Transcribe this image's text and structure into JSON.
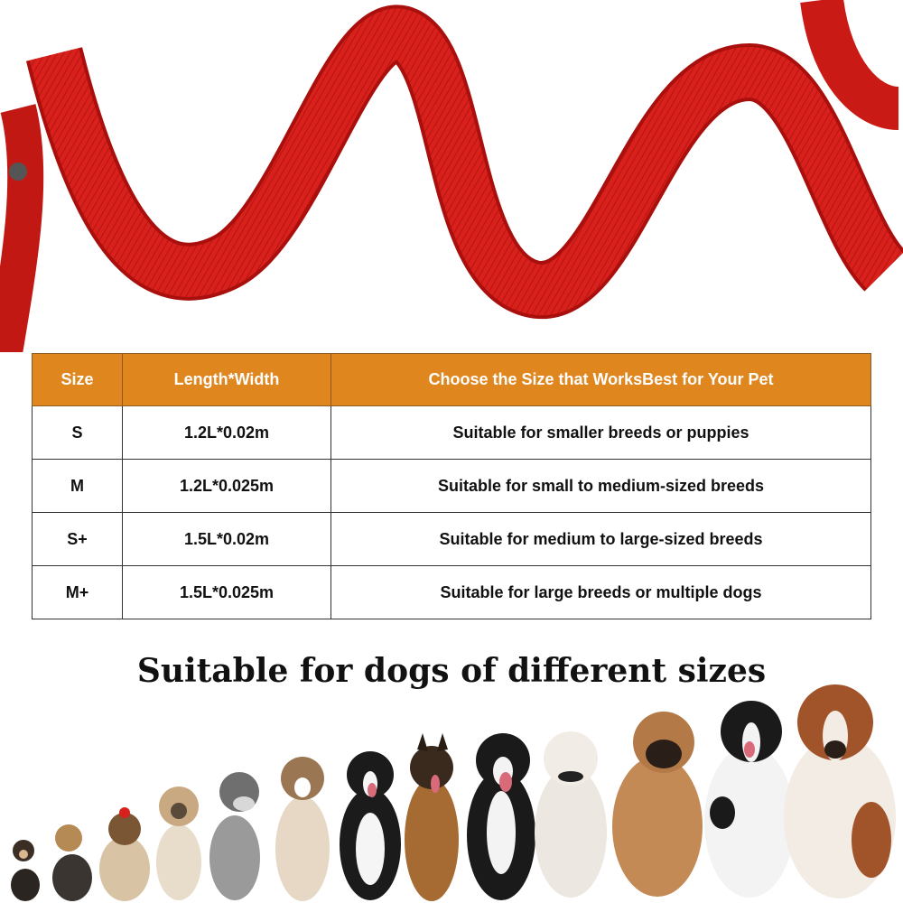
{
  "colors": {
    "header_bg": "#e0861e",
    "leash_red": "#d8201c",
    "text": "#111111"
  },
  "table": {
    "headers": [
      "Size",
      "Length*Width",
      "Choose the Size that WorksBest for Your Pet"
    ],
    "rows": [
      [
        "S",
        "1.2L*0.02m",
        "Suitable for smaller breeds or puppies"
      ],
      [
        "M",
        "1.2L*0.025m",
        "Suitable for small to medium-sized breeds"
      ],
      [
        "S+",
        "1.5L*0.02m",
        "Suitable for medium to large-sized breeds"
      ],
      [
        "M+",
        "1.5L*0.025m",
        "Suitable for large breeds or multiple dogs"
      ]
    ]
  },
  "headline": "Suitable for dogs of different sizes",
  "images": {
    "leash": "red-nylon-leash-photo",
    "dogs": "row-of-dogs-small-to-large-photo"
  }
}
